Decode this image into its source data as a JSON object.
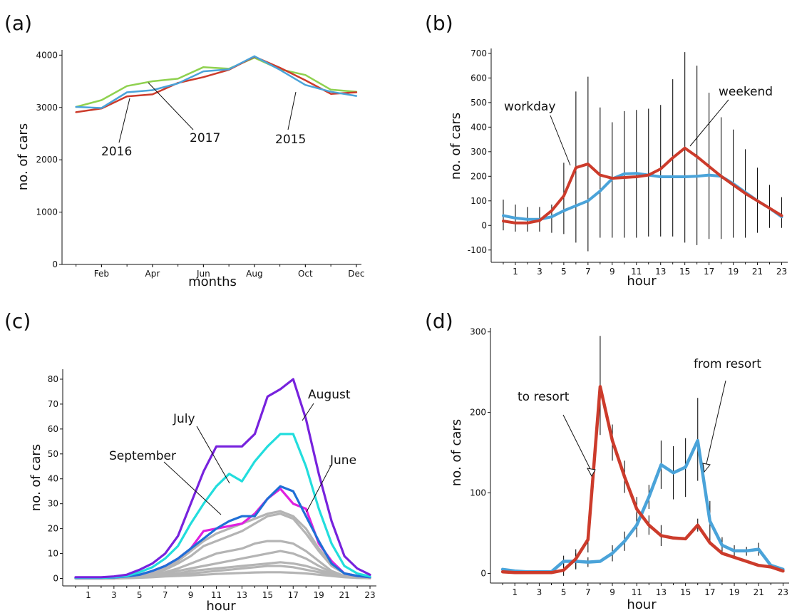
{
  "chart_data": [
    {
      "panel": "(a)",
      "type": "line",
      "xlabel": "months",
      "ylabel": "no. of cars",
      "ylim": [
        0,
        4100
      ],
      "x": [
        1,
        2,
        3,
        4,
        5,
        6,
        7,
        8,
        9,
        10,
        11,
        12
      ],
      "xticks": [
        2,
        4,
        6,
        8,
        10,
        12
      ],
      "xticklabels": [
        "Feb",
        "Apr",
        "Jun",
        "Aug",
        "Oct",
        "Dec"
      ],
      "yticks": [
        0,
        1000,
        2000,
        3000,
        4000
      ],
      "series": [
        {
          "name": "2015",
          "color": "#4aa3d9",
          "values": [
            3010,
            2990,
            3290,
            3330,
            3460,
            3690,
            3730,
            3980,
            3720,
            3430,
            3300,
            3220
          ]
        },
        {
          "name": "2016",
          "color": "#cc3b2b",
          "values": [
            2910,
            2980,
            3210,
            3250,
            3470,
            3580,
            3720,
            3970,
            3760,
            3520,
            3260,
            3290
          ]
        },
        {
          "name": "2017",
          "color": "#8fd14f",
          "values": [
            3010,
            3140,
            3410,
            3500,
            3550,
            3770,
            3740,
            3950,
            3730,
            3620,
            3340,
            3300
          ]
        }
      ],
      "annotations": [
        "2016",
        "2017",
        "2015"
      ]
    },
    {
      "panel": "(b)",
      "type": "line",
      "xlabel": "hour",
      "ylabel": "no. of cars",
      "ylim": [
        -150,
        720
      ],
      "x": [
        0,
        1,
        2,
        3,
        4,
        5,
        6,
        7,
        8,
        9,
        10,
        11,
        12,
        13,
        14,
        15,
        16,
        17,
        18,
        19,
        20,
        21,
        22,
        23
      ],
      "xticks": [
        1,
        3,
        5,
        7,
        9,
        11,
        13,
        15,
        17,
        19,
        21,
        23
      ],
      "yticks": [
        -100,
        0,
        100,
        200,
        300,
        400,
        500,
        600,
        700
      ],
      "series": [
        {
          "name": "workday",
          "color": "#cc3b2b",
          "values": [
            18,
            10,
            10,
            20,
            60,
            120,
            235,
            250,
            205,
            192,
            195,
            198,
            205,
            230,
            275,
            315,
            280,
            240,
            200,
            165,
            130,
            100,
            70,
            40
          ]
        },
        {
          "name": "weekend",
          "color": "#4aa3d9",
          "values": [
            40,
            30,
            25,
            25,
            35,
            60,
            80,
            100,
            140,
            190,
            210,
            212,
            205,
            198,
            198,
            198,
            200,
            205,
            200,
            170,
            135,
            100,
            70,
            35
          ]
        }
      ],
      "error_bars": {
        "upper": [
          105,
          85,
          75,
          75,
          85,
          255,
          545,
          605,
          480,
          420,
          465,
          470,
          475,
          490,
          595,
          705,
          650,
          540,
          440,
          390,
          310,
          235,
          165,
          115
        ],
        "lower": [
          -20,
          -25,
          -25,
          -25,
          -30,
          -35,
          -70,
          -105,
          -50,
          -50,
          -50,
          -50,
          -45,
          -45,
          -45,
          -70,
          -80,
          -55,
          -55,
          -50,
          -50,
          -30,
          -10,
          -10
        ]
      }
    },
    {
      "panel": "(c)",
      "type": "line",
      "xlabel": "hour",
      "ylabel": "no. of cars",
      "ylim": [
        -3,
        84
      ],
      "x": [
        0,
        1,
        2,
        3,
        4,
        5,
        6,
        7,
        8,
        9,
        10,
        11,
        12,
        13,
        14,
        15,
        16,
        17,
        18,
        19,
        20,
        21,
        22,
        23
      ],
      "xticks": [
        1,
        3,
        5,
        7,
        9,
        11,
        13,
        15,
        17,
        19,
        21,
        23
      ],
      "yticks": [
        0,
        10,
        20,
        30,
        40,
        50,
        60,
        70,
        80
      ],
      "series": [
        {
          "name": "August",
          "color": "#7722dd",
          "values": [
            0.5,
            0.5,
            0.5,
            0.8,
            1.5,
            3.5,
            6,
            10,
            17,
            30,
            43,
            53,
            53,
            53,
            58,
            73,
            76,
            80,
            64,
            42,
            23,
            9,
            4,
            1.5
          ]
        },
        {
          "name": "July",
          "color": "#22dddd",
          "values": [
            0.3,
            0.3,
            0.3,
            0.5,
            1,
            2.5,
            4.5,
            8,
            13,
            22,
            30,
            37,
            42,
            39,
            47,
            53,
            58,
            58,
            45,
            28,
            14,
            5,
            2,
            0.8
          ]
        },
        {
          "name": "June",
          "color": "#1f6fd6",
          "values": [
            0.3,
            0.3,
            0.3,
            0.4,
            0.8,
            1.5,
            3,
            5,
            8,
            12,
            16,
            20,
            23,
            25,
            25,
            32,
            37,
            35,
            25,
            15,
            6,
            2,
            1,
            0.5
          ]
        },
        {
          "name": "September",
          "color": "#e020e0",
          "values": [
            0.3,
            0.3,
            0.3,
            0.4,
            0.8,
            1.5,
            3,
            5,
            8,
            12,
            19,
            20,
            21,
            22,
            26,
            32,
            36,
            30,
            28,
            14,
            7,
            2,
            1,
            0.5
          ]
        },
        {
          "name": "",
          "color": "#b4b4b4",
          "values": [
            0,
            0,
            0,
            0,
            0.5,
            1,
            2,
            4,
            7,
            11,
            15,
            18,
            20,
            22,
            24,
            26,
            27,
            25,
            20,
            12,
            6,
            2,
            1,
            0.5
          ]
        },
        {
          "name": "",
          "color": "#b4b4b4",
          "values": [
            0,
            0,
            0,
            0,
            0.5,
            1,
            2,
            3.5,
            6,
            9,
            13,
            15,
            17,
            19,
            22,
            25,
            26,
            24,
            18,
            11,
            5,
            2,
            1,
            0.5
          ]
        },
        {
          "name": "",
          "color": "#b4b4b4",
          "values": [
            0,
            0,
            0,
            0,
            0.3,
            0.8,
            1.5,
            2.5,
            4,
            6,
            8,
            10,
            11,
            12,
            14,
            15,
            15,
            14,
            11,
            7,
            3,
            1,
            0.5,
            0.2
          ]
        },
        {
          "name": "",
          "color": "#b4b4b4",
          "values": [
            0,
            0,
            0,
            0,
            0.3,
            0.6,
            1,
            2,
            3,
            4,
            5,
            6,
            7,
            8,
            9,
            10,
            11,
            10,
            8,
            5,
            2.5,
            1,
            0.5,
            0.2
          ]
        },
        {
          "name": "",
          "color": "#b4b4b4",
          "values": [
            0,
            0,
            0,
            0,
            0.2,
            0.5,
            0.8,
            1.5,
            2,
            3,
            3.5,
            4,
            4.5,
            5,
            5.5,
            6,
            6.5,
            6,
            5,
            3.5,
            2,
            1,
            0.5,
            0.2
          ]
        },
        {
          "name": "",
          "color": "#b4b4b4",
          "values": [
            0,
            0,
            0,
            0,
            0.2,
            0.4,
            0.6,
            1,
            1.5,
            2,
            2.5,
            3,
            3.5,
            4,
            4.5,
            5,
            5,
            4.5,
            3.5,
            2.5,
            1.5,
            0.8,
            0.3,
            0.1
          ]
        },
        {
          "name": "",
          "color": "#b4b4b4",
          "values": [
            0,
            0,
            0,
            0,
            0.1,
            0.3,
            0.5,
            0.8,
            1,
            1.2,
            1.5,
            1.8,
            2,
            2.2,
            2.4,
            2.5,
            2.5,
            2.3,
            2,
            1.5,
            1,
            0.5,
            0.2,
            0.1
          ]
        }
      ]
    },
    {
      "panel": "(d)",
      "type": "line",
      "xlabel": "hour",
      "ylabel": "no. of cars",
      "ylim": [
        -12,
        305
      ],
      "x": [
        0,
        1,
        2,
        3,
        4,
        5,
        6,
        7,
        8,
        9,
        10,
        11,
        12,
        13,
        14,
        15,
        16,
        17,
        18,
        19,
        20,
        21,
        22,
        23
      ],
      "xticks": [
        1,
        3,
        5,
        7,
        9,
        11,
        13,
        15,
        17,
        19,
        21,
        23
      ],
      "yticks": [
        0,
        100,
        200,
        300
      ],
      "series": [
        {
          "name": "to resort",
          "color": "#cc3b2b",
          "values": [
            2,
            1,
            1,
            1,
            1,
            4,
            18,
            42,
            232,
            165,
            120,
            80,
            60,
            47,
            44,
            43,
            60,
            38,
            25,
            20,
            15,
            10,
            8,
            3
          ],
          "err_upper": [
            null,
            null,
            null,
            null,
            null,
            14,
            30,
            58,
            295,
            185,
            140,
            95,
            72,
            60,
            null,
            null,
            68,
            null,
            null,
            null,
            null,
            null,
            null,
            null
          ],
          "err_lower": [
            null,
            null,
            null,
            null,
            null,
            -3,
            6,
            26,
            172,
            140,
            100,
            65,
            48,
            34,
            null,
            null,
            52,
            null,
            null,
            null,
            null,
            null,
            null,
            null
          ]
        },
        {
          "name": "from resort",
          "color": "#4aa3d9",
          "values": [
            5,
            3,
            2,
            2,
            2,
            15,
            15,
            14,
            15,
            25,
            40,
            60,
            95,
            135,
            125,
            132,
            165,
            65,
            35,
            28,
            28,
            30,
            10,
            5
          ],
          "err_upper": [
            null,
            null,
            null,
            null,
            null,
            22,
            25,
            20,
            null,
            35,
            52,
            75,
            110,
            165,
            158,
            168,
            218,
            90,
            45,
            35,
            33,
            38,
            null,
            null
          ],
          "err_lower": [
            null,
            null,
            null,
            null,
            null,
            8,
            5,
            8,
            null,
            15,
            28,
            45,
            80,
            105,
            92,
            95,
            115,
            40,
            25,
            20,
            22,
            22,
            null,
            null
          ]
        }
      ]
    }
  ],
  "panels": {
    "a": {
      "label": "(a)",
      "xlabel": "months",
      "ylabel": "no. of cars",
      "annot": {
        "s2016": "2016",
        "s2017": "2017",
        "s2015": "2015"
      }
    },
    "b": {
      "label": "(b)",
      "xlabel": "hour",
      "ylabel": "no. of cars",
      "annot": {
        "workday": "workday",
        "weekend": "weekend"
      }
    },
    "c": {
      "label": "(c)",
      "xlabel": "hour",
      "ylabel": "no. of cars",
      "annot": {
        "august": "August",
        "july": "July",
        "september": "September",
        "june": "June"
      }
    },
    "d": {
      "label": "(d)",
      "xlabel": "hour",
      "ylabel": "no. of cars",
      "annot": {
        "to": "to resort",
        "from": "from resort"
      }
    }
  }
}
